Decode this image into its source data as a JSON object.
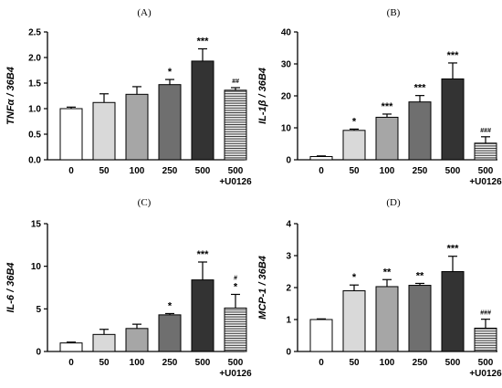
{
  "chart_data": [
    {
      "type": "bar",
      "panel": "(A)",
      "ylabel_main": "TNFα",
      "ylabel_ref": "36B4",
      "categories": [
        "0",
        "50",
        "100",
        "250",
        "500",
        "500"
      ],
      "category_sublabels": [
        "",
        "",
        "",
        "",
        "",
        "+U0126"
      ],
      "values": [
        1.0,
        1.12,
        1.28,
        1.47,
        1.93,
        1.36
      ],
      "errors": [
        0.03,
        0.17,
        0.15,
        0.1,
        0.24,
        0.05
      ],
      "significance": [
        "",
        "",
        "",
        "*",
        "***",
        "##"
      ],
      "ylim": [
        0,
        2.5
      ],
      "yticks": [
        "0.0",
        "0.5",
        "1.0",
        "1.5",
        "2.0",
        "2.5"
      ]
    },
    {
      "type": "bar",
      "panel": "(B)",
      "ylabel_main": "IL-1β",
      "ylabel_ref": "36B4",
      "categories": [
        "0",
        "50",
        "100",
        "250",
        "500",
        "500"
      ],
      "category_sublabels": [
        "",
        "",
        "",
        "",
        "",
        "+U0126"
      ],
      "values": [
        1.0,
        9.2,
        13.3,
        18.1,
        25.3,
        5.2
      ],
      "errors": [
        0.2,
        0.4,
        1.0,
        2.0,
        5.0,
        2.0
      ],
      "significance": [
        "",
        "*",
        "***",
        "***",
        "***",
        "###"
      ],
      "ylim": [
        0,
        40
      ],
      "yticks": [
        "0",
        "10",
        "20",
        "30",
        "40"
      ]
    },
    {
      "type": "bar",
      "panel": "(C)",
      "ylabel_main": "IL-6",
      "ylabel_ref": "36B4",
      "categories": [
        "0",
        "50",
        "100",
        "250",
        "500",
        "500"
      ],
      "category_sublabels": [
        "",
        "",
        "",
        "",
        "",
        "+U0126"
      ],
      "values": [
        1.0,
        2.0,
        2.7,
        4.3,
        8.4,
        5.1
      ],
      "errors": [
        0.1,
        0.6,
        0.5,
        0.15,
        2.1,
        1.6
      ],
      "significance": [
        "",
        "",
        "",
        "*",
        "***",
        "*"
      ],
      "significance_top": [
        "",
        "",
        "",
        "",
        "",
        "#"
      ],
      "ylim": [
        0,
        15
      ],
      "yticks": [
        "0",
        "5",
        "10",
        "15"
      ]
    },
    {
      "type": "bar",
      "panel": "(D)",
      "ylabel_main": "MCP-1",
      "ylabel_ref": "36B4",
      "categories": [
        "0",
        "50",
        "100",
        "250",
        "500",
        "500"
      ],
      "category_sublabels": [
        "",
        "",
        "",
        "",
        "",
        "+U0126"
      ],
      "values": [
        1.0,
        1.9,
        2.03,
        2.07,
        2.5,
        0.73
      ],
      "errors": [
        0.02,
        0.18,
        0.22,
        0.06,
        0.48,
        0.28
      ],
      "significance": [
        "",
        "*",
        "**",
        "**",
        "***",
        "###"
      ],
      "ylim": [
        0,
        4
      ],
      "yticks": [
        "0",
        "1",
        "2",
        "3",
        "4"
      ]
    }
  ],
  "colors": {
    "bars": [
      "#ffffff",
      "#d9d9d9",
      "#a6a6a6",
      "#6f6f6f",
      "#333333",
      "hatched"
    ],
    "stroke": "#000000",
    "hatch_bg": "#ffffff",
    "hatch_line": "#333333"
  }
}
